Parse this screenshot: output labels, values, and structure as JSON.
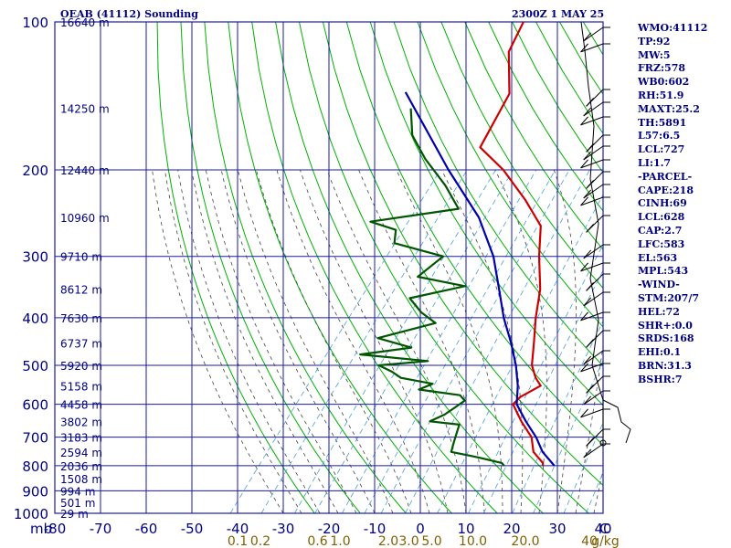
{
  "header": {
    "title_left": "OEAB (41112) Sounding",
    "title_right": "2300Z  1 MAY 25"
  },
  "colors": {
    "grid": "#1a1aa8",
    "dry_adiabat": "#00b000",
    "moist_adiabat": "#444444",
    "mixing_ratio": "#4a9fd8",
    "temperature": "#cc0000",
    "dewpoint": "#005500",
    "parcel": "#0000aa",
    "axis_text": "#000080",
    "mixing_text": "#806000"
  },
  "params": [
    "WMO:41112",
    "TP:92",
    "MW:5",
    "FRZ:578",
    "WB0:602",
    "RH:51.9",
    "MAXT:25.2",
    "TH:5891",
    "L57:6.5",
    "LCL:727",
    "LI:1.7",
    "-PARCEL-",
    "CAPE:218",
    "CINH:69",
    "LCL:628",
    "CAP:2.7",
    "LFC:583",
    "EL:563",
    "MPL:543",
    "-WIND-",
    "STM:207/7",
    "HEL:72",
    "SHR+:0.0",
    "SRDS:168",
    "EHI:0.1",
    "BRN:31.3",
    "BSHR:7"
  ],
  "chart_data": {
    "type": "line",
    "chart_kind": "skew-T log-P sounding",
    "x_unit_label": "C",
    "y_unit_label": "mb",
    "xlim": [
      -80,
      40
    ],
    "pressure_range": [
      1000,
      100
    ],
    "y_scale": "log",
    "grid": true,
    "temperature_ticks": [
      -80,
      -70,
      -60,
      -50,
      -40,
      -30,
      -20,
      -10,
      0,
      10,
      20,
      30,
      40
    ],
    "pressure_ticks": [
      100,
      200,
      300,
      400,
      500,
      600,
      700,
      800,
      900,
      1000
    ],
    "height_labels": [
      {
        "p": 100,
        "label": "16640 m"
      },
      {
        "p": 150,
        "label": "14250 m"
      },
      {
        "p": 200,
        "label": "12440 m"
      },
      {
        "p": 250,
        "label": "10960 m"
      },
      {
        "p": 300,
        "label": "9710 m"
      },
      {
        "p": 350,
        "label": "8612 m"
      },
      {
        "p": 400,
        "label": "7630 m"
      },
      {
        "p": 450,
        "label": "6737 m"
      },
      {
        "p": 500,
        "label": "5920 m"
      },
      {
        "p": 550,
        "label": "5158 m"
      },
      {
        "p": 600,
        "label": "4458 m"
      },
      {
        "p": 650,
        "label": "3802 m"
      },
      {
        "p": 700,
        "label": "3183 m"
      },
      {
        "p": 750,
        "label": "2594 m"
      },
      {
        "p": 800,
        "label": "2036 m"
      },
      {
        "p": 850,
        "label": "1508 m"
      },
      {
        "p": 900,
        "label": "994 m"
      },
      {
        "p": 950,
        "label": "501 m"
      },
      {
        "p": 1000,
        "label": "29 m"
      }
    ],
    "mixing_ratio_labels": [
      "0.1",
      "0.2",
      "0.6",
      "1.0",
      "2.0",
      "3.0",
      "5.0",
      "10.0",
      "20.0",
      "40",
      "g/kg"
    ],
    "mixing_ratio_label_x": [
      -40,
      -35,
      -22.5,
      -17.5,
      -7,
      -2.5,
      2.5,
      11.5,
      23,
      37,
      40.5
    ],
    "series": [
      {
        "name": "Temperature",
        "points": [
          {
            "p": 100,
            "t": -63.5
          },
          {
            "p": 115,
            "t": -61.5
          },
          {
            "p": 140,
            "t": -54
          },
          {
            "p": 180,
            "t": -51
          },
          {
            "p": 200,
            "t": -42
          },
          {
            "p": 230,
            "t": -32
          },
          {
            "p": 260,
            "t": -24
          },
          {
            "p": 300,
            "t": -19
          },
          {
            "p": 350,
            "t": -13
          },
          {
            "p": 400,
            "t": -9
          },
          {
            "p": 450,
            "t": -5
          },
          {
            "p": 500,
            "t": -1.5
          },
          {
            "p": 530,
            "t": 1.5
          },
          {
            "p": 550,
            "t": 4
          },
          {
            "p": 580,
            "t": 1.5
          },
          {
            "p": 600,
            "t": 1.2
          },
          {
            "p": 650,
            "t": 6
          },
          {
            "p": 700,
            "t": 11
          },
          {
            "p": 750,
            "t": 14
          },
          {
            "p": 790,
            "t": 18
          },
          {
            "p": 800,
            "t": 18.5
          }
        ]
      },
      {
        "name": "Dewpoint",
        "points": [
          {
            "p": 150,
            "t": -73
          },
          {
            "p": 170,
            "t": -68
          },
          {
            "p": 190,
            "t": -61
          },
          {
            "p": 215,
            "t": -52
          },
          {
            "p": 240,
            "t": -45
          },
          {
            "p": 255,
            "t": -62
          },
          {
            "p": 265,
            "t": -55
          },
          {
            "p": 282,
            "t": -53
          },
          {
            "p": 300,
            "t": -40
          },
          {
            "p": 330,
            "t": -42
          },
          {
            "p": 345,
            "t": -30
          },
          {
            "p": 365,
            "t": -40
          },
          {
            "p": 390,
            "t": -35
          },
          {
            "p": 410,
            "t": -30
          },
          {
            "p": 440,
            "t": -40
          },
          {
            "p": 460,
            "t": -31
          },
          {
            "p": 475,
            "t": -41
          },
          {
            "p": 490,
            "t": -25
          },
          {
            "p": 500,
            "t": -35
          },
          {
            "p": 515,
            "t": -31
          },
          {
            "p": 530,
            "t": -28
          },
          {
            "p": 545,
            "t": -20
          },
          {
            "p": 560,
            "t": -22
          },
          {
            "p": 575,
            "t": -12
          },
          {
            "p": 590,
            "t": -10
          },
          {
            "p": 610,
            "t": -11
          },
          {
            "p": 630,
            "t": -12
          },
          {
            "p": 650,
            "t": -14
          },
          {
            "p": 660,
            "t": -7
          },
          {
            "p": 690,
            "t": -6
          },
          {
            "p": 720,
            "t": -5
          },
          {
            "p": 750,
            "t": -4
          },
          {
            "p": 770,
            "t": 3
          },
          {
            "p": 790,
            "t": 9
          },
          {
            "p": 800,
            "t": 10
          }
        ]
      },
      {
        "name": "Parcel",
        "points": [
          {
            "p": 139,
            "t": -77
          },
          {
            "p": 200,
            "t": -54
          },
          {
            "p": 250,
            "t": -39
          },
          {
            "p": 300,
            "t": -29
          },
          {
            "p": 350,
            "t": -22
          },
          {
            "p": 400,
            "t": -16
          },
          {
            "p": 450,
            "t": -10
          },
          {
            "p": 500,
            "t": -5
          },
          {
            "p": 550,
            "t": -1
          },
          {
            "p": 600,
            "t": 2
          },
          {
            "p": 650,
            "t": 7
          },
          {
            "p": 700,
            "t": 12
          },
          {
            "p": 750,
            "t": 16
          },
          {
            "p": 790,
            "t": 20
          },
          {
            "p": 800,
            "t": 21
          }
        ]
      }
    ]
  }
}
